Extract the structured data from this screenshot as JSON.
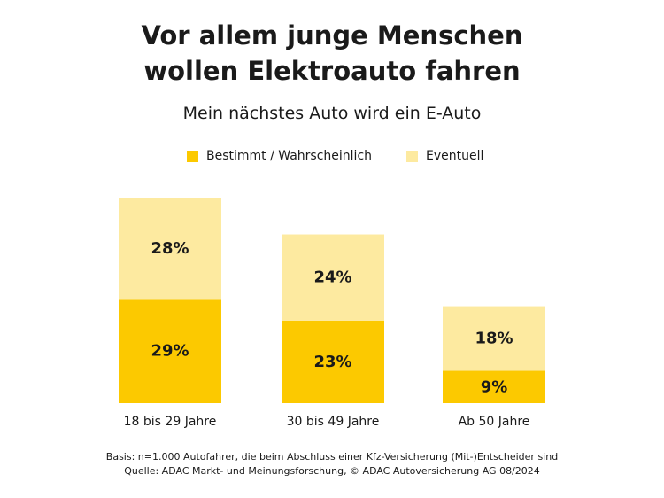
{
  "chart_data": {
    "type": "bar",
    "stacked": true,
    "title_lines": [
      "Vor allem junge Menschen",
      "wollen Elektroauto fahren"
    ],
    "subtitle": "Mein nächstes Auto wird ein E-Auto",
    "categories": [
      "18 bis 29 Jahre",
      "30 bis 49 Jahre",
      "Ab 50 Jahre"
    ],
    "series": [
      {
        "name": "Bestimmt / Wahrscheinlich",
        "values": [
          29,
          23,
          9
        ],
        "labels": [
          "29%",
          "23%",
          "9%"
        ],
        "color": "#fcc900"
      },
      {
        "name": "Eventuell",
        "values": [
          28,
          24,
          18
        ],
        "labels": [
          "28%",
          "24%",
          "18%"
        ],
        "color": "#fdeaa0"
      }
    ],
    "ylim": [
      0,
      57
    ],
    "legend_position": "top",
    "grid": false,
    "footnotes": [
      "Basis: n=1.000 Autofahrer, die beim Abschluss einer Kfz-Versicherung (Mit-)Entscheider sind",
      "Quelle: ADAC Markt- und Meinungsforschung, © ADAC Autoversicherung AG 08/2024"
    ]
  }
}
